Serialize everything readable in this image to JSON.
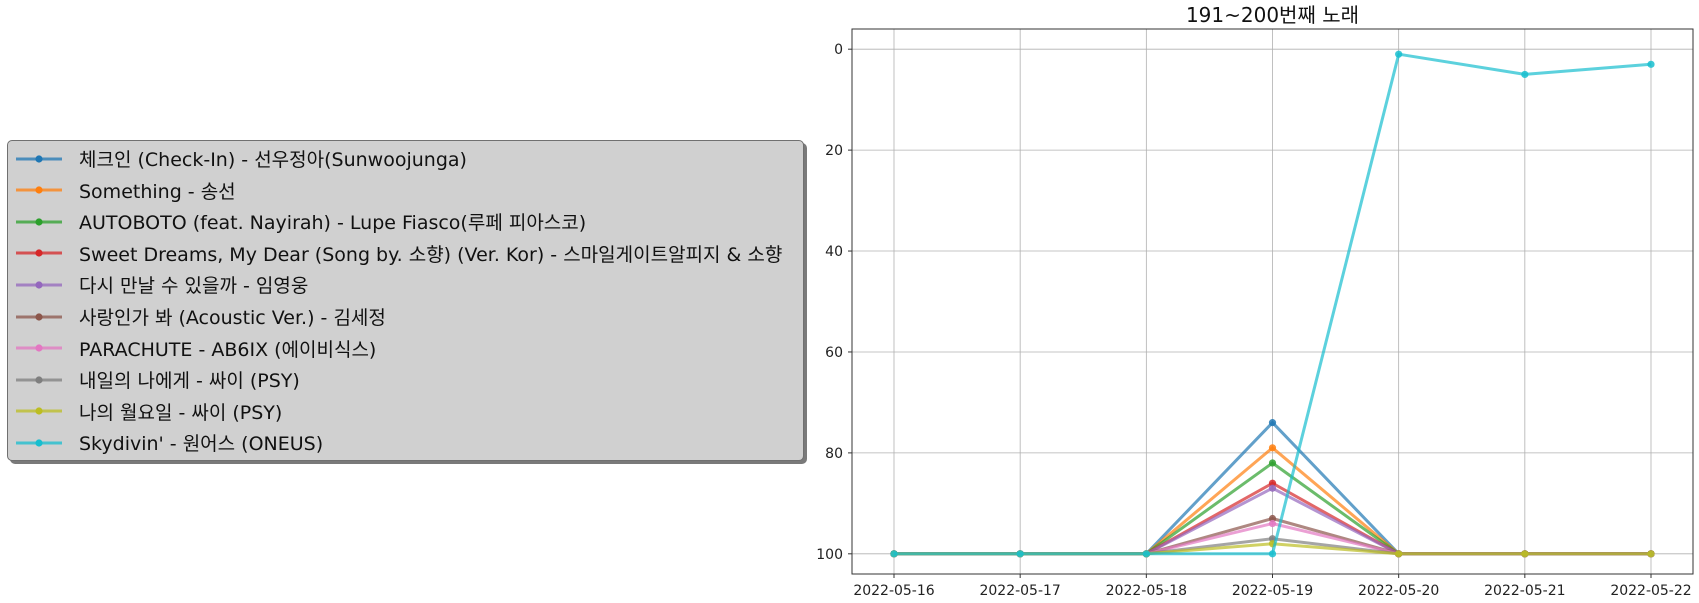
{
  "chart_data": {
    "type": "line",
    "title": "191~200번째 노래",
    "xlabel": "",
    "ylabel": "",
    "x": [
      "2022-05-16",
      "2022-05-17",
      "2022-05-18",
      "2022-05-19",
      "2022-05-20",
      "2022-05-21",
      "2022-05-22"
    ],
    "y_ticks": [
      0,
      20,
      40,
      60,
      80,
      100
    ],
    "ylim": [
      104,
      -4
    ],
    "y_inverted": true,
    "grid": true,
    "legend_position": "left",
    "series": [
      {
        "name": "체크인 (Check-In) - 선우정아(Sunwoojunga)",
        "color": "#1f77b4",
        "values": [
          100,
          100,
          100,
          74,
          100,
          100,
          100
        ]
      },
      {
        "name": "Something - 송선",
        "color": "#ff7f0e",
        "values": [
          100,
          100,
          100,
          79,
          100,
          100,
          100
        ]
      },
      {
        "name": "AUTOBOTO (feat. Nayirah) - Lupe Fiasco(루페 피아스코)",
        "color": "#2ca02c",
        "values": [
          100,
          100,
          100,
          82,
          100,
          100,
          100
        ]
      },
      {
        "name": "Sweet Dreams, My Dear (Song by. 소향) (Ver. Kor) - 스마일게이트알피지 & 소향",
        "color": "#d62728",
        "values": [
          100,
          100,
          100,
          86,
          100,
          100,
          100
        ]
      },
      {
        "name": "다시 만날 수 있을까 - 임영웅",
        "color": "#9467bd",
        "values": [
          100,
          100,
          100,
          87,
          100,
          100,
          100
        ]
      },
      {
        "name": "사랑인가 봐 (Acoustic Ver.) - 김세정",
        "color": "#8c564b",
        "values": [
          100,
          100,
          100,
          93,
          100,
          100,
          100
        ]
      },
      {
        "name": "PARACHUTE - AB6IX (에이비식스)",
        "color": "#e377c2",
        "values": [
          100,
          100,
          100,
          94,
          100,
          100,
          100
        ]
      },
      {
        "name": "내일의 나에게 - 싸이 (PSY)",
        "color": "#7f7f7f",
        "values": [
          100,
          100,
          100,
          97,
          100,
          100,
          100
        ]
      },
      {
        "name": "나의 월요일 - 싸이 (PSY)",
        "color": "#bcbd22",
        "values": [
          100,
          100,
          100,
          98,
          100,
          100,
          100
        ]
      },
      {
        "name": "Skydivin' - 원어스 (ONEUS)",
        "color": "#17becf",
        "values": [
          100,
          100,
          100,
          100,
          1,
          5,
          3
        ]
      }
    ]
  }
}
